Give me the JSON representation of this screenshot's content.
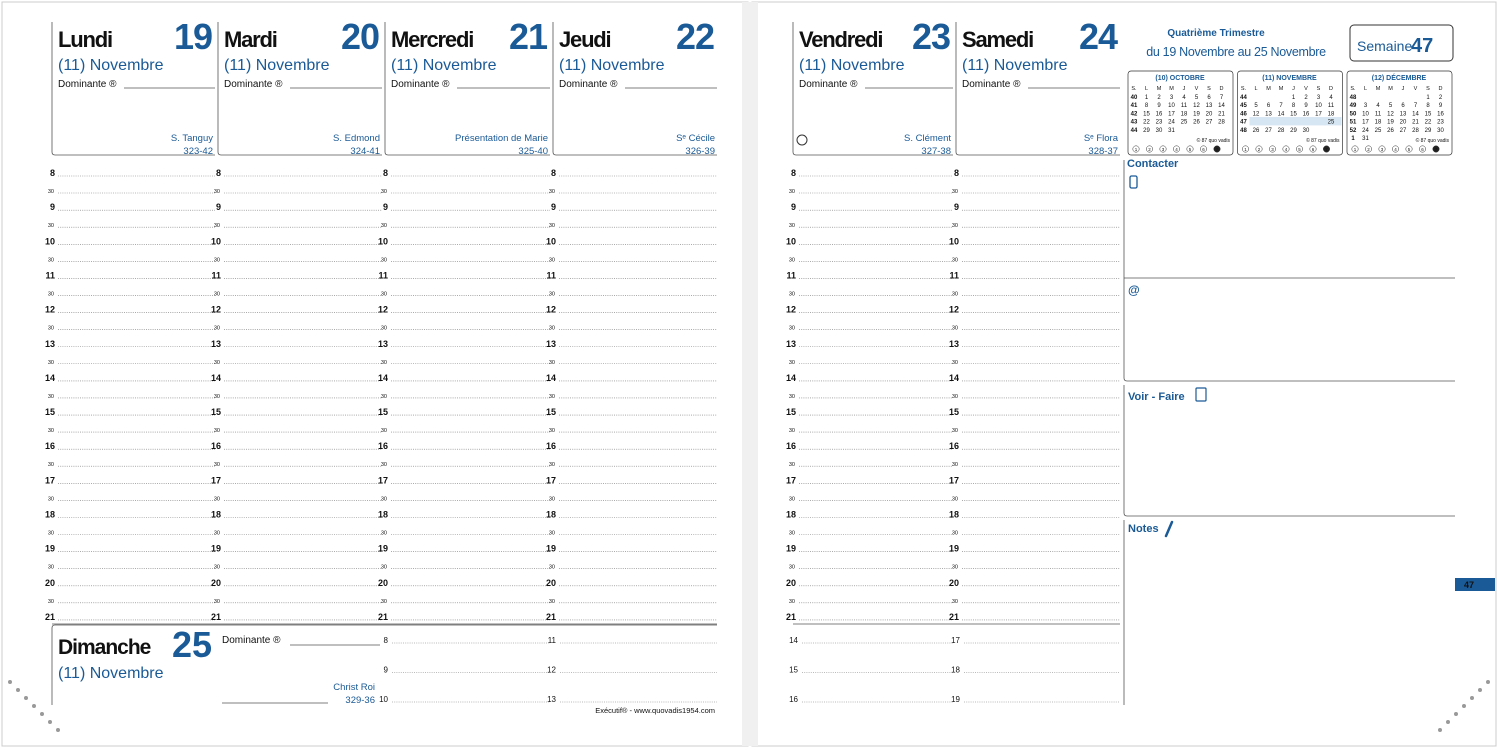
{
  "days": [
    {
      "name": "Lundi",
      "number": "19",
      "month": "(11) Novembre",
      "dominante": "Dominante ®",
      "saint": "S. Tanguy",
      "daycount": "323-42"
    },
    {
      "name": "Mardi",
      "number": "20",
      "month": "(11) Novembre",
      "dominante": "Dominante ®",
      "saint": "S. Edmond",
      "daycount": "324-41"
    },
    {
      "name": "Mercredi",
      "number": "21",
      "month": "(11) Novembre",
      "dominante": "Dominante ®",
      "saint": "Présentation de Marie",
      "daycount": "325-40"
    },
    {
      "name": "Jeudi",
      "number": "22",
      "month": "(11) Novembre",
      "dominante": "Dominante ®",
      "saint": "Sᵉ Cécile",
      "daycount": "326-39"
    },
    {
      "name": "Vendredi",
      "number": "23",
      "month": "(11) Novembre",
      "dominante": "Dominante ®",
      "saint": "S. Clément",
      "daycount": "327-38"
    },
    {
      "name": "Samedi",
      "number": "24",
      "month": "(11) Novembre",
      "dominante": "Dominante ®",
      "saint": "Sᵉ Flora",
      "daycount": "328-37"
    }
  ],
  "hours": [
    "8",
    "9",
    "10",
    "11",
    "12",
    "13",
    "14",
    "15",
    "16",
    "17",
    "18",
    "19",
    "20",
    "21"
  ],
  "half": "30",
  "sunday": {
    "name": "Dimanche",
    "number": "25",
    "month": "(11) Novembre",
    "dominante": "Dominante ®",
    "saint": "Christ Roi",
    "daycount": "329-36"
  },
  "sunday_hours": [
    "8",
    "9",
    "10",
    "11",
    "12",
    "13"
  ],
  "weekend_hours": [
    "14",
    "15",
    "16",
    "17",
    "18",
    "19"
  ],
  "footer": "Exécutif® - www.quovadis1954.com",
  "quarter": {
    "title": "Quatrième Trimestre",
    "range": "du 19 Novembre au 25 Novembre"
  },
  "week": {
    "label": "Semaine",
    "number": "47"
  },
  "weekdays": [
    "S.",
    "L",
    "M",
    "M",
    "J",
    "V",
    "S",
    "D"
  ],
  "calendars": [
    {
      "title": "(10) OCTOBRE",
      "rows": [
        [
          "40",
          "1",
          "2",
          "3",
          "4",
          "5",
          "6",
          "7"
        ],
        [
          "41",
          "8",
          "9",
          "10",
          "11",
          "12",
          "13",
          "14"
        ],
        [
          "42",
          "15",
          "16",
          "17",
          "18",
          "19",
          "20",
          "21"
        ],
        [
          "43",
          "22",
          "23",
          "24",
          "25",
          "26",
          "27",
          "28"
        ],
        [
          "44",
          "29",
          "30",
          "31",
          null,
          null,
          null,
          null
        ]
      ]
    },
    {
      "title": "(11) NOVEMBRE",
      "rows": [
        [
          "44",
          null,
          null,
          null,
          "1",
          "2",
          "3",
          "4"
        ],
        [
          "45",
          "5",
          "6",
          "7",
          "8",
          "9",
          "10",
          "11"
        ],
        [
          "46",
          "12",
          "13",
          "14",
          "15",
          "16",
          "17",
          "18"
        ],
        [
          "47",
          "19",
          "20",
          "21",
          "22",
          "23",
          "24",
          "25"
        ],
        [
          "48",
          "26",
          "27",
          "28",
          "29",
          "30",
          null,
          null
        ]
      ]
    },
    {
      "title": "(12) DÉCEMBRE",
      "rows": [
        [
          "48",
          null,
          null,
          null,
          null,
          null,
          "1",
          "2"
        ],
        [
          "49",
          "3",
          "4",
          "5",
          "6",
          "7",
          "8",
          "9"
        ],
        [
          "50",
          "10",
          "11",
          "12",
          "13",
          "14",
          "15",
          "16"
        ],
        [
          "51",
          "17",
          "18",
          "19",
          "20",
          "21",
          "22",
          "23"
        ],
        [
          "52",
          "24",
          "25",
          "26",
          "27",
          "28",
          "29",
          "30"
        ],
        [
          "1",
          "31",
          null,
          null,
          null,
          null,
          null,
          null
        ]
      ]
    }
  ],
  "credit": "© 87 quo vadis",
  "circles": [
    "1",
    "2",
    "3",
    "4",
    "5",
    "6",
    "7"
  ],
  "sections": {
    "contact": "Contacter",
    "email": "@",
    "todo": "Voir - Faire",
    "notes": "Notes"
  },
  "tab": "47"
}
